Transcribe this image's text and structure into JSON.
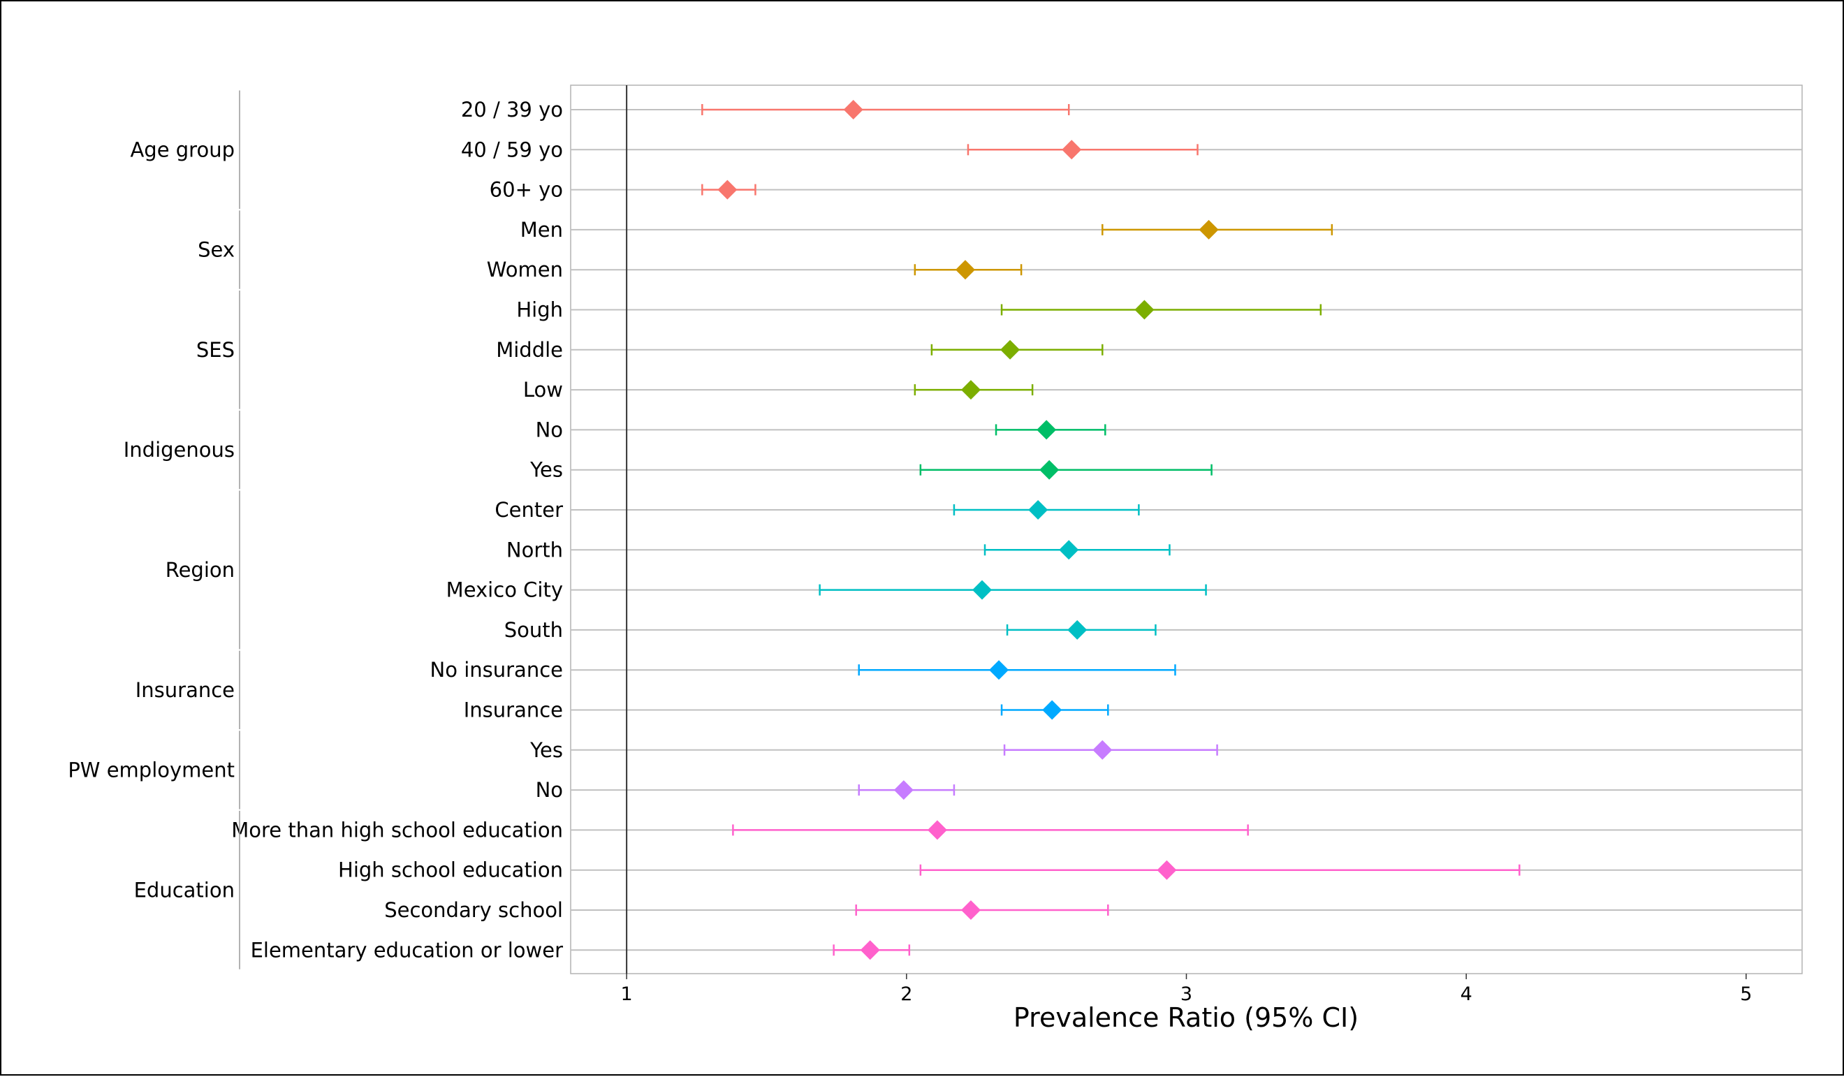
{
  "chart_data": {
    "type": "forest",
    "xlabel": "Prevalence Ratio (95% CI)",
    "xlim": [
      0.8,
      5.2
    ],
    "xticks": [
      1,
      2,
      3,
      4,
      5
    ],
    "reference_line": 1,
    "groups": [
      {
        "name": "Age group",
        "color": "#F8766D",
        "rows": [
          {
            "label": "20 / 39 yo",
            "estimate": 1.81,
            "lower": 1.27,
            "upper": 2.58
          },
          {
            "label": "40 / 59 yo",
            "estimate": 2.59,
            "lower": 2.22,
            "upper": 3.04
          },
          {
            "label": "60+ yo",
            "estimate": 1.36,
            "lower": 1.27,
            "upper": 1.46
          }
        ]
      },
      {
        "name": "Sex",
        "color": "#CD9600",
        "rows": [
          {
            "label": "Men",
            "estimate": 3.08,
            "lower": 2.7,
            "upper": 3.52
          },
          {
            "label": "Women",
            "estimate": 2.21,
            "lower": 2.03,
            "upper": 2.41
          }
        ]
      },
      {
        "name": "SES",
        "color": "#7CAE00",
        "rows": [
          {
            "label": "High",
            "estimate": 2.85,
            "lower": 2.34,
            "upper": 3.48
          },
          {
            "label": "Middle",
            "estimate": 2.37,
            "lower": 2.09,
            "upper": 2.7
          },
          {
            "label": "Low",
            "estimate": 2.23,
            "lower": 2.03,
            "upper": 2.45
          }
        ]
      },
      {
        "name": "Indigenous",
        "color": "#00BE67",
        "rows": [
          {
            "label": "No",
            "estimate": 2.5,
            "lower": 2.32,
            "upper": 2.71
          },
          {
            "label": "Yes",
            "estimate": 2.51,
            "lower": 2.05,
            "upper": 3.09
          }
        ]
      },
      {
        "name": "Region",
        "color": "#00BFC4",
        "rows": [
          {
            "label": "Center",
            "estimate": 2.47,
            "lower": 2.17,
            "upper": 2.83
          },
          {
            "label": "North",
            "estimate": 2.58,
            "lower": 2.28,
            "upper": 2.94
          },
          {
            "label": "Mexico City",
            "estimate": 2.27,
            "lower": 1.69,
            "upper": 3.07
          },
          {
            "label": "South",
            "estimate": 2.61,
            "lower": 2.36,
            "upper": 2.89
          }
        ]
      },
      {
        "name": "Insurance",
        "color": "#00A9FF",
        "rows": [
          {
            "label": "No insurance",
            "estimate": 2.33,
            "lower": 1.83,
            "upper": 2.96
          },
          {
            "label": "Insurance",
            "estimate": 2.52,
            "lower": 2.34,
            "upper": 2.72
          }
        ]
      },
      {
        "name": "PW employment",
        "color": "#C77CFF",
        "rows": [
          {
            "label": "Yes",
            "estimate": 2.7,
            "lower": 2.35,
            "upper": 3.11
          },
          {
            "label": "No",
            "estimate": 1.99,
            "lower": 1.83,
            "upper": 2.17
          }
        ]
      },
      {
        "name": "Education",
        "color": "#FF61CC",
        "rows": [
          {
            "label": "More than high school education",
            "estimate": 2.11,
            "lower": 1.38,
            "upper": 3.22
          },
          {
            "label": "High school education",
            "estimate": 2.93,
            "lower": 2.05,
            "upper": 4.19
          },
          {
            "label": "Secondary school",
            "estimate": 2.23,
            "lower": 1.82,
            "upper": 2.72
          },
          {
            "label": "Elementary education or lower",
            "estimate": 1.87,
            "lower": 1.74,
            "upper": 2.01
          }
        ]
      }
    ]
  }
}
